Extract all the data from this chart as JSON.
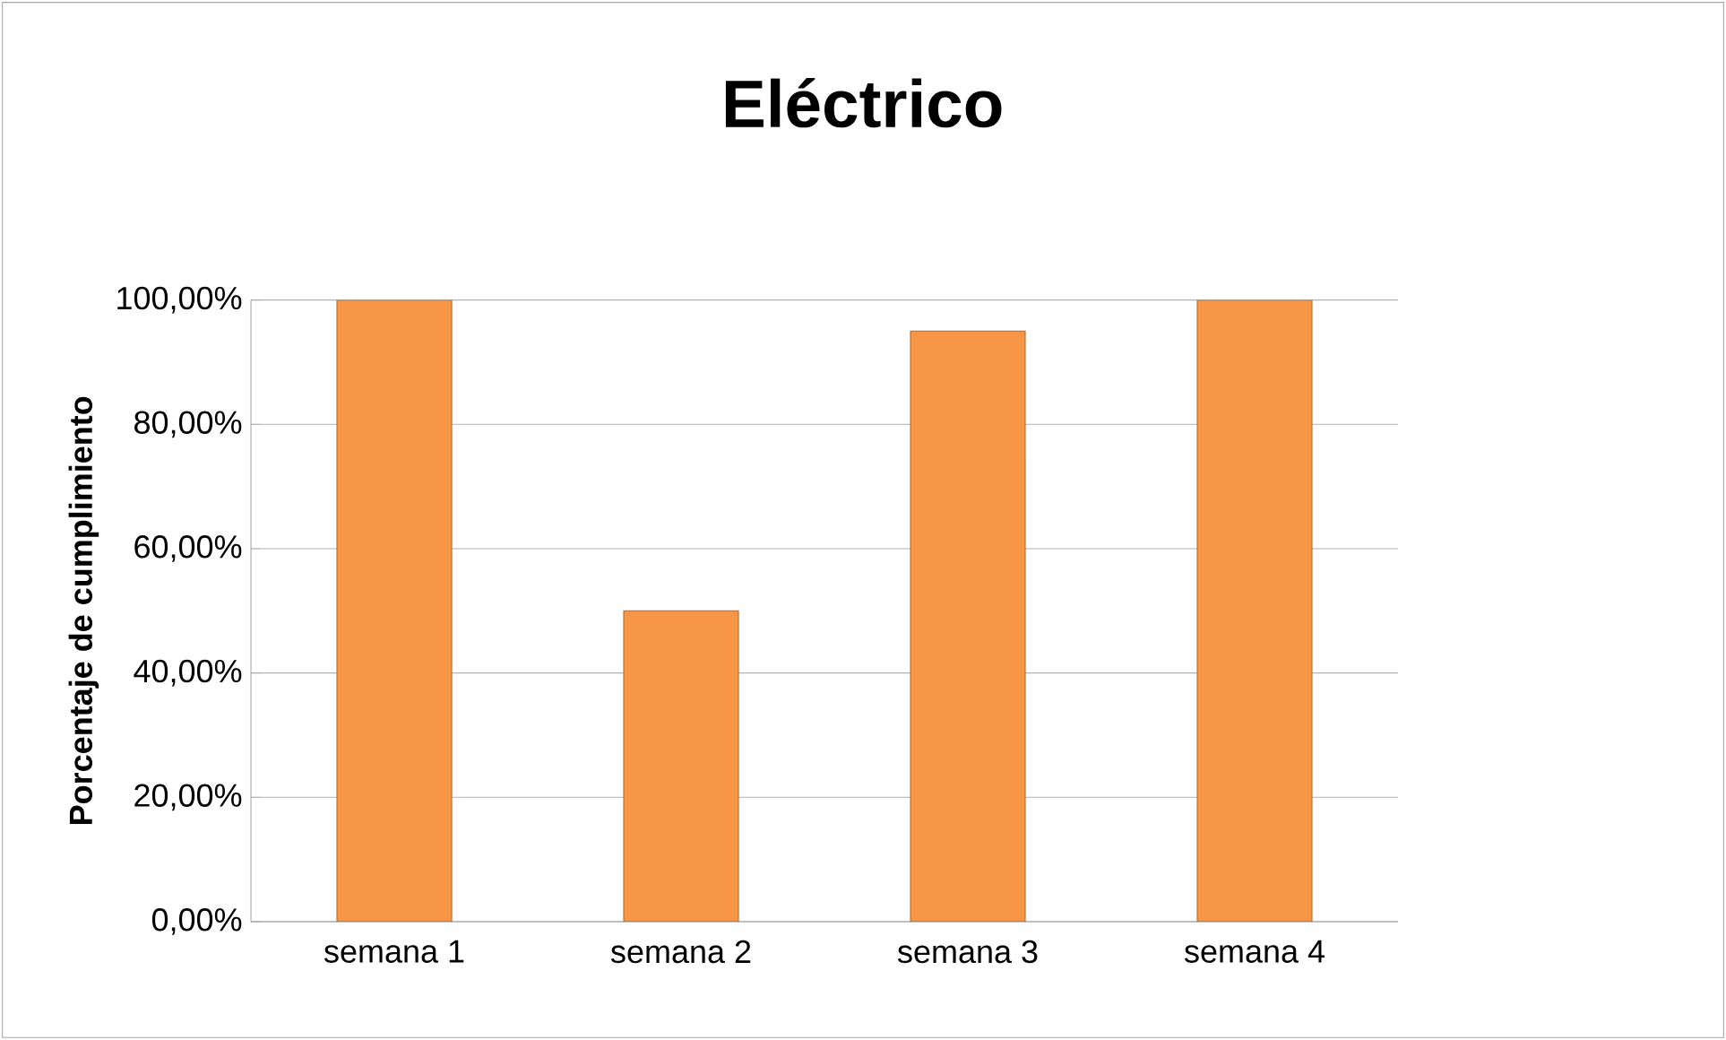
{
  "chart_data": {
    "type": "bar",
    "title": "Eléctrico",
    "ylabel": "Porcentaje de cumplimiento",
    "categories": [
      "semana 1",
      "semana 2",
      "semana 3",
      "semana 4"
    ],
    "values": [
      100,
      50,
      95,
      100
    ],
    "color": "#f79646",
    "ylim": [
      0,
      100
    ],
    "yticks": [
      {
        "value": 0,
        "label": "0,00%"
      },
      {
        "value": 20,
        "label": "20,00%"
      },
      {
        "value": 40,
        "label": "40,00%"
      },
      {
        "value": 60,
        "label": "60,00%"
      },
      {
        "value": 80,
        "label": "80,00%"
      },
      {
        "value": 100,
        "label": "100,00%"
      }
    ],
    "grid": "y"
  }
}
